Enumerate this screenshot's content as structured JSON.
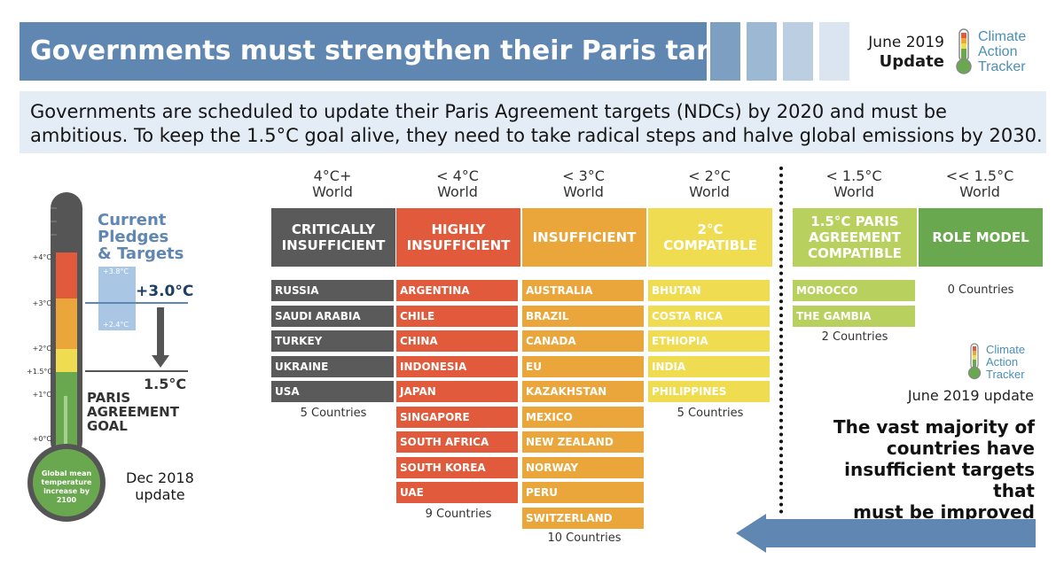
{
  "header": {
    "title": "Governments must strengthen their Paris targets",
    "square_colors": [
      "#7c9fc2",
      "#9db8d3",
      "#bccfe2",
      "#dbe5ef"
    ],
    "date_line": "June 2019",
    "date_bold": "Update",
    "logo": {
      "line1": "Climate",
      "line2": "Action",
      "line3": "Tracker"
    }
  },
  "subtitle": {
    "line1": "Governments are scheduled to update their Paris Agreement targets (NDCs) by 2020 and must be",
    "line2": "ambitious. To keep the 1.5°C goal alive, they need to take radical steps and halve global emissions by 2030."
  },
  "thermometer": {
    "ticks": [
      "+4°C",
      "+3°C",
      "+2°C",
      "+1.5°C",
      "+1°C",
      "+0°C"
    ],
    "bulb_text": "Global mean temperature increase by 2100",
    "pledges_title_1": "Current",
    "pledges_title_2": "Pledges",
    "pledges_title_3": "& Targets",
    "pledge_high": "+3.8°C",
    "pledge_low": "+2.4°C",
    "pledge_value": "+3.0°C",
    "goal_value": "1.5°C",
    "goal_label_1": "PARIS",
    "goal_label_2": "AGREEMENT",
    "goal_label_3": "GOAL",
    "dec_1": "Dec 2018",
    "dec_2": "update"
  },
  "categories": [
    {
      "world_1": "4°C+",
      "world_2": "World",
      "label": "CRITICALLY INSUFFICIENT",
      "color": "#5a5a5a",
      "row_color": "#5a5a5a",
      "countries": [
        "RUSSIA",
        "SAUDI ARABIA",
        "TURKEY",
        "UKRAINE",
        "USA"
      ],
      "count_label": "5 Countries"
    },
    {
      "world_1": "< 4°C",
      "world_2": "World",
      "label": "HIGHLY INSUFFICIENT",
      "color": "#e05a3b",
      "row_color": "#e05a3b",
      "countries": [
        "ARGENTINA",
        "CHILE",
        "CHINA",
        "INDONESIA",
        "JAPAN",
        "SINGAPORE",
        "SOUTH AFRICA",
        "SOUTH KOREA",
        "UAE"
      ],
      "count_label": "9 Countries"
    },
    {
      "world_1": "< 3°C",
      "world_2": "World",
      "label": "INSUFFICIENT",
      "color": "#eaa63a",
      "row_color": "#eaa63a",
      "countries": [
        "AUSTRALIA",
        "BRAZIL",
        "CANADA",
        "EU",
        "KAZAKHSTAN",
        "MEXICO",
        "NEW ZEALAND",
        "NORWAY",
        "PERU",
        "SWITZERLAND"
      ],
      "count_label": "10 Countries"
    },
    {
      "world_1": "< 2°C",
      "world_2": "World",
      "label": "2°C COMPATIBLE",
      "color": "#f0dc50",
      "row_color": "#f0dc50",
      "countries": [
        "BHUTAN",
        "COSTA RICA",
        "ETHIOPIA",
        "INDIA",
        "PHILIPPINES"
      ],
      "count_label": "5 Countries"
    },
    {
      "world_1": "< 1.5°C",
      "world_2": "World",
      "label": "1.5°C PARIS AGREEMENT COMPATIBLE",
      "color": "#b8d15e",
      "row_color": "#b8d15e",
      "countries": [
        "MOROCCO",
        "THE GAMBIA"
      ],
      "count_label": "2 Countries"
    },
    {
      "world_1": "<< 1.5°C",
      "world_2": "World",
      "label": "ROLE MODEL",
      "color": "#6aa84f",
      "row_color": "#6aa84f",
      "countries": [],
      "count_label": "0 Countries"
    }
  ],
  "right_panel": {
    "logo": {
      "line1": "Climate",
      "line2": "Action",
      "line3": "Tracker"
    },
    "update_label": "June 2019 update",
    "conclusion_1": "The vast majority of",
    "conclusion_2": "countries have",
    "conclusion_3": "insufficient targets that",
    "conclusion_4": "must be improved"
  }
}
